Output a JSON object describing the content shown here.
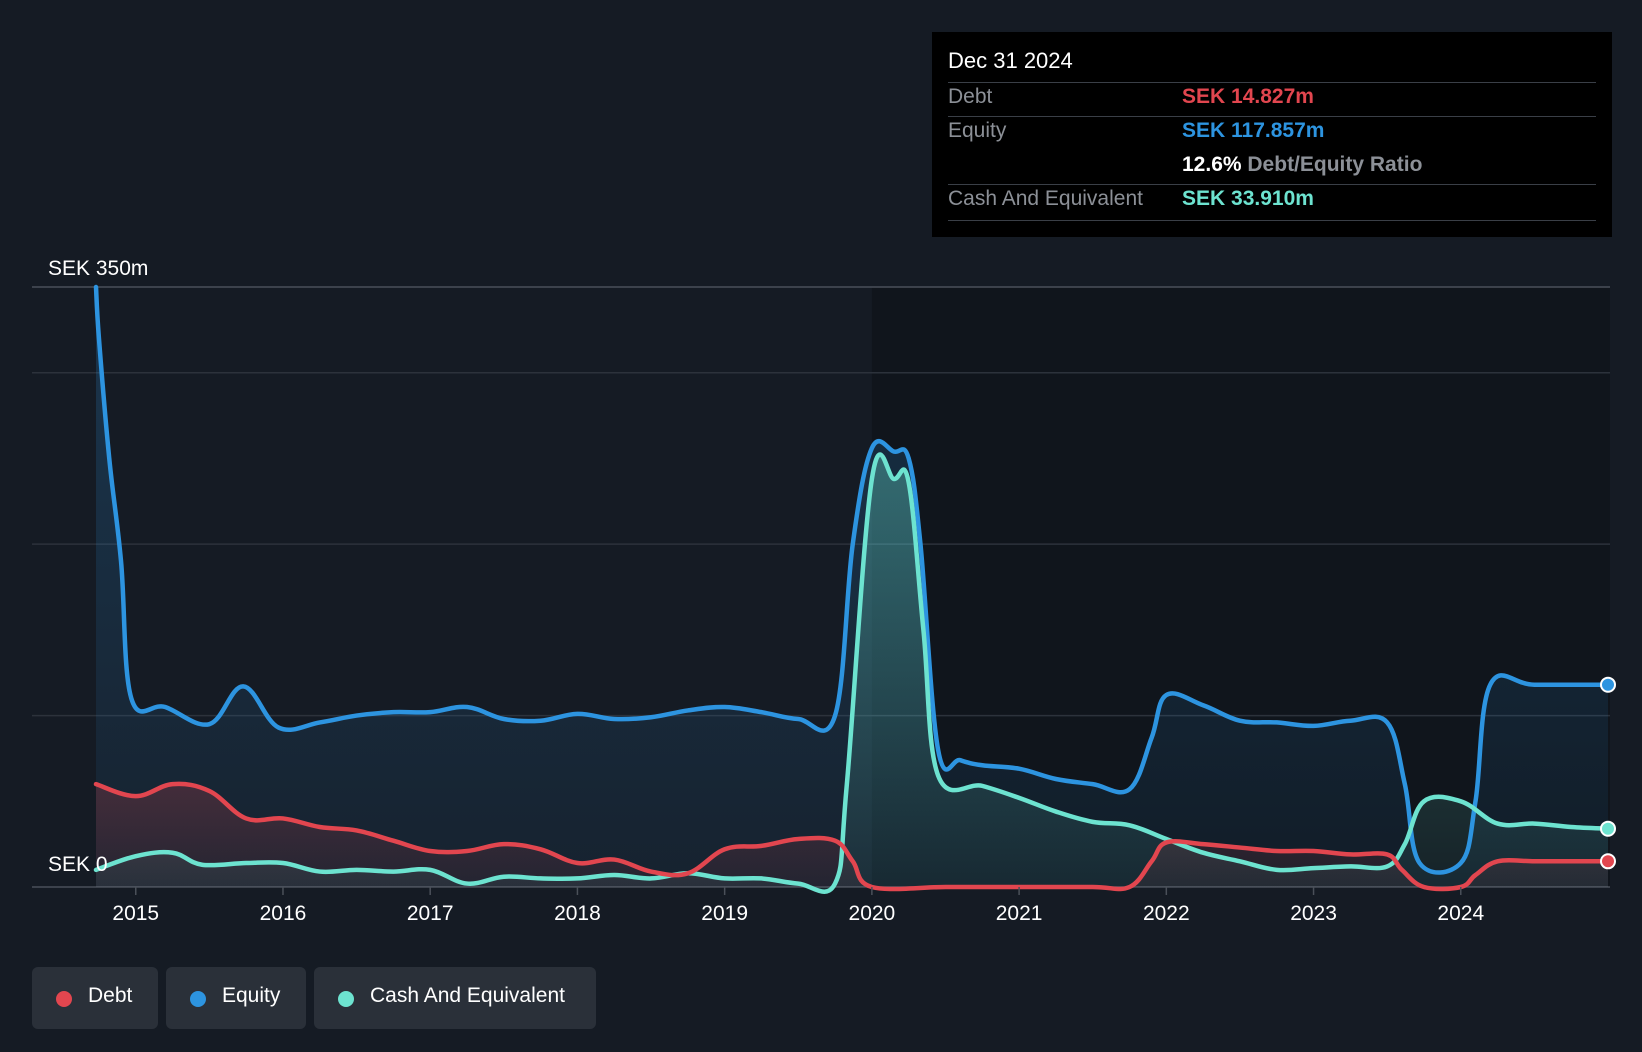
{
  "tooltip": {
    "date": "Dec 31 2024",
    "debt_label": "Debt",
    "debt_value": "SEK 14.827m",
    "equity_label": "Equity",
    "equity_value": "SEK 117.857m",
    "ratio_value": "12.6%",
    "ratio_label": "Debt/Equity Ratio",
    "cash_label": "Cash And Equivalent",
    "cash_value": "SEK 33.910m"
  },
  "legend": {
    "debt": "Debt",
    "equity": "Equity",
    "cash": "Cash And Equivalent"
  },
  "colors": {
    "debt": "#e2464f",
    "equity": "#2d94e0",
    "cash": "#6de3d0",
    "background": "#151b24"
  },
  "chart_data": {
    "type": "area",
    "y_top_label": "SEK 350m",
    "y_bottom_label": "SEK 0",
    "ylim": [
      0,
      350
    ],
    "xlim": [
      2014.5,
      2025.0
    ],
    "x_ticks": [
      "2015",
      "2016",
      "2017",
      "2018",
      "2019",
      "2020",
      "2021",
      "2022",
      "2023",
      "2024"
    ],
    "grid": true,
    "legend_position": "bottom-left",
    "series": [
      {
        "name": "Equity",
        "color_key": "equity",
        "points": [
          [
            2014.73,
            350
          ],
          [
            2014.75,
            320
          ],
          [
            2014.82,
            250
          ],
          [
            2014.9,
            190
          ],
          [
            2014.97,
            110
          ],
          [
            2015.2,
            105
          ],
          [
            2015.5,
            95
          ],
          [
            2015.73,
            117
          ],
          [
            2015.97,
            93
          ],
          [
            2016.25,
            96
          ],
          [
            2016.5,
            100
          ],
          [
            2016.75,
            102
          ],
          [
            2017.0,
            102
          ],
          [
            2017.25,
            105
          ],
          [
            2017.5,
            98
          ],
          [
            2017.75,
            97
          ],
          [
            2018.0,
            101
          ],
          [
            2018.25,
            98
          ],
          [
            2018.5,
            99
          ],
          [
            2018.75,
            103
          ],
          [
            2019.0,
            105
          ],
          [
            2019.25,
            102
          ],
          [
            2019.5,
            98
          ],
          [
            2019.75,
            100
          ],
          [
            2019.87,
            200
          ],
          [
            2020.0,
            256
          ],
          [
            2020.15,
            254
          ],
          [
            2020.25,
            250
          ],
          [
            2020.33,
            200
          ],
          [
            2020.45,
            80
          ],
          [
            2020.6,
            74
          ],
          [
            2020.75,
            71
          ],
          [
            2021.0,
            69
          ],
          [
            2021.25,
            63
          ],
          [
            2021.5,
            60
          ],
          [
            2021.75,
            57
          ],
          [
            2021.9,
            87
          ],
          [
            2022.0,
            112
          ],
          [
            2022.25,
            106
          ],
          [
            2022.5,
            97
          ],
          [
            2022.75,
            96
          ],
          [
            2023.0,
            94
          ],
          [
            2023.25,
            97
          ],
          [
            2023.5,
            96
          ],
          [
            2023.62,
            60
          ],
          [
            2023.72,
            14
          ],
          [
            2024.0,
            14
          ],
          [
            2024.1,
            50
          ],
          [
            2024.2,
            118
          ],
          [
            2024.5,
            118
          ],
          [
            2025.0,
            118
          ]
        ]
      },
      {
        "name": "Cash And Equivalent",
        "color_key": "cash",
        "points": [
          [
            2014.73,
            10
          ],
          [
            2015.0,
            18
          ],
          [
            2015.25,
            20
          ],
          [
            2015.45,
            13
          ],
          [
            2015.75,
            14
          ],
          [
            2016.0,
            14
          ],
          [
            2016.25,
            9
          ],
          [
            2016.5,
            10
          ],
          [
            2016.75,
            9
          ],
          [
            2017.0,
            10
          ],
          [
            2017.25,
            2
          ],
          [
            2017.5,
            6
          ],
          [
            2017.75,
            5
          ],
          [
            2018.0,
            5
          ],
          [
            2018.25,
            7
          ],
          [
            2018.5,
            5
          ],
          [
            2018.75,
            8
          ],
          [
            2019.0,
            5
          ],
          [
            2019.25,
            5
          ],
          [
            2019.5,
            2
          ],
          [
            2019.75,
            2
          ],
          [
            2019.83,
            60
          ],
          [
            2020.0,
            238
          ],
          [
            2020.15,
            238
          ],
          [
            2020.25,
            236
          ],
          [
            2020.35,
            150
          ],
          [
            2020.45,
            65
          ],
          [
            2020.75,
            59
          ],
          [
            2021.0,
            52
          ],
          [
            2021.25,
            44
          ],
          [
            2021.5,
            38
          ],
          [
            2021.75,
            36
          ],
          [
            2022.0,
            28
          ],
          [
            2022.25,
            20
          ],
          [
            2022.5,
            15
          ],
          [
            2022.75,
            10
          ],
          [
            2023.0,
            11
          ],
          [
            2023.25,
            12
          ],
          [
            2023.5,
            12
          ],
          [
            2023.62,
            25
          ],
          [
            2023.75,
            50
          ],
          [
            2024.0,
            50
          ],
          [
            2024.25,
            37
          ],
          [
            2024.5,
            37
          ],
          [
            2024.75,
            35
          ],
          [
            2025.0,
            34
          ]
        ]
      },
      {
        "name": "Debt",
        "color_key": "debt",
        "points": [
          [
            2014.73,
            60
          ],
          [
            2015.0,
            53
          ],
          [
            2015.25,
            60
          ],
          [
            2015.5,
            56
          ],
          [
            2015.75,
            40
          ],
          [
            2016.0,
            40
          ],
          [
            2016.25,
            35
          ],
          [
            2016.5,
            33
          ],
          [
            2016.75,
            27
          ],
          [
            2017.0,
            21
          ],
          [
            2017.25,
            21
          ],
          [
            2017.5,
            25
          ],
          [
            2017.75,
            22
          ],
          [
            2018.0,
            14
          ],
          [
            2018.25,
            16
          ],
          [
            2018.5,
            9
          ],
          [
            2018.75,
            8
          ],
          [
            2019.0,
            22
          ],
          [
            2019.25,
            24
          ],
          [
            2019.5,
            28
          ],
          [
            2019.75,
            27
          ],
          [
            2019.87,
            15
          ],
          [
            2020.0,
            0
          ],
          [
            2020.5,
            0
          ],
          [
            2021.0,
            0
          ],
          [
            2021.5,
            0
          ],
          [
            2021.75,
            0
          ],
          [
            2021.9,
            15
          ],
          [
            2022.0,
            26
          ],
          [
            2022.25,
            25
          ],
          [
            2022.5,
            23
          ],
          [
            2022.75,
            21
          ],
          [
            2023.0,
            21
          ],
          [
            2023.25,
            19
          ],
          [
            2023.5,
            19
          ],
          [
            2023.6,
            10
          ],
          [
            2023.75,
            0
          ],
          [
            2024.0,
            0
          ],
          [
            2024.1,
            7
          ],
          [
            2024.25,
            15
          ],
          [
            2024.5,
            15
          ],
          [
            2024.75,
            15
          ],
          [
            2025.0,
            15
          ]
        ]
      }
    ]
  }
}
